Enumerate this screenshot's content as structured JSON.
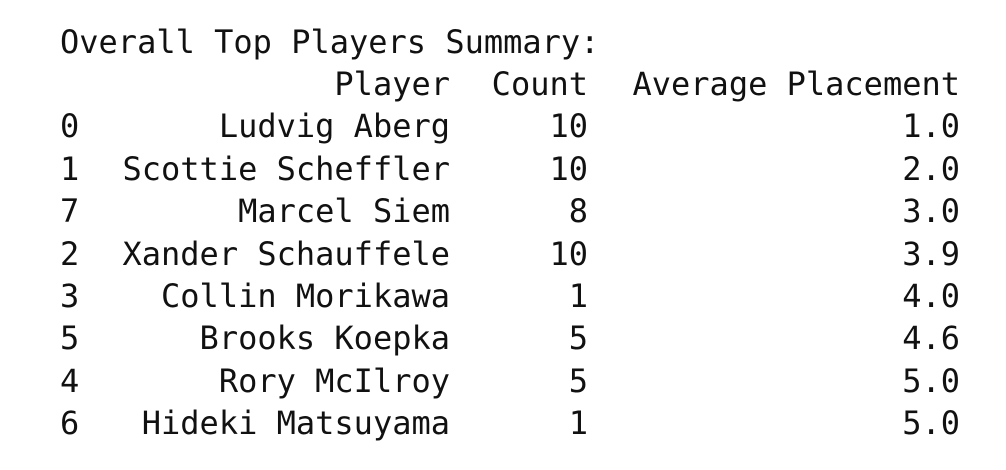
{
  "title": "Overall Top Players Summary:",
  "table": {
    "columns": [
      "Player",
      "Count",
      "Average Placement"
    ],
    "rows": [
      [
        "0",
        "Ludvig Aberg",
        "10",
        "1.0"
      ],
      [
        "1",
        "Scottie Scheffler",
        "10",
        "2.0"
      ],
      [
        "7",
        "Marcel Siem",
        "8",
        "3.0"
      ],
      [
        "2",
        "Xander Schauffele",
        "10",
        "3.9"
      ],
      [
        "3",
        "Collin Morikawa",
        "1",
        "4.0"
      ],
      [
        "5",
        "Brooks Koepka",
        "5",
        "4.6"
      ],
      [
        "4",
        "Rory McIlroy",
        "5",
        "5.0"
      ],
      [
        "6",
        "Hideki Matsuyama",
        "1",
        "5.0"
      ]
    ]
  }
}
